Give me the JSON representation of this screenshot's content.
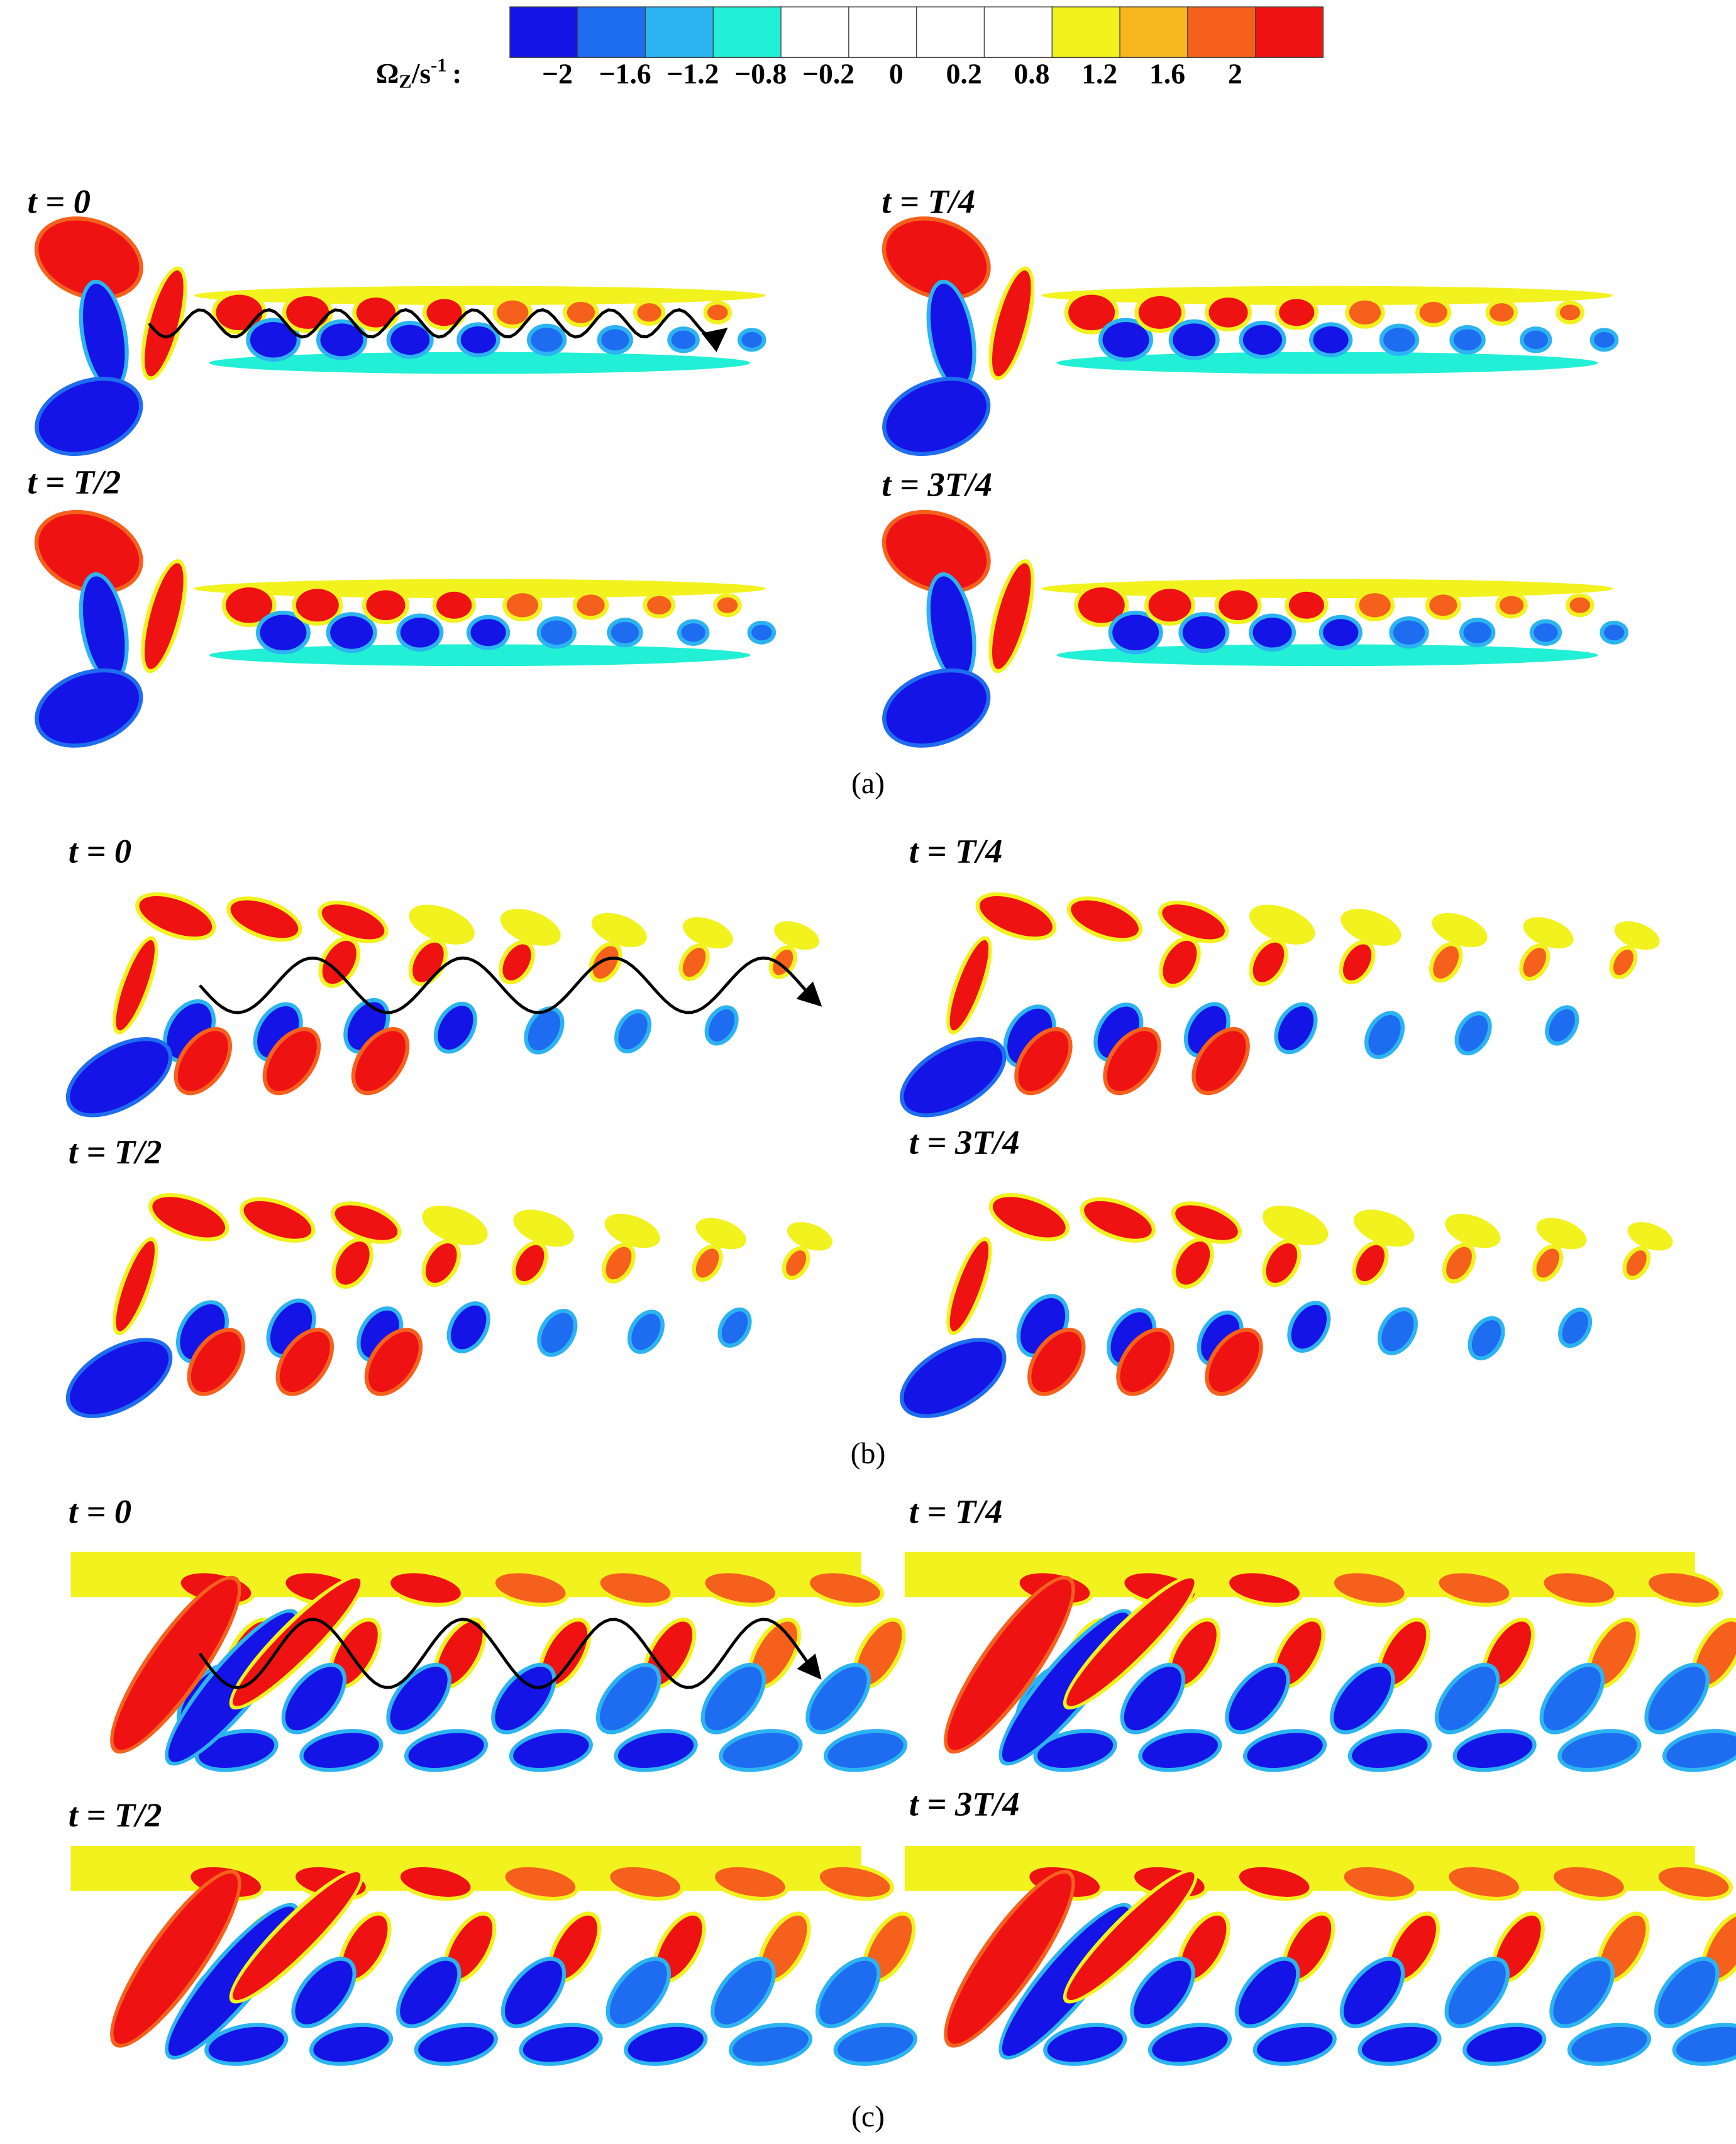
{
  "colorbar": {
    "symbol": "Ω",
    "subscript": "Z",
    "unit": "/s",
    "superscript": "-1",
    "separator": ":",
    "ticks": [
      "−2",
      "−1.6",
      "−1.2",
      "−0.8",
      "−0.2",
      "0",
      "0.2",
      "0.8",
      "1.2",
      "1.6",
      "2"
    ],
    "colors": [
      "#1414e6",
      "#1e6cf0",
      "#2cb4f2",
      "#22f0d6",
      "#ffffff",
      "#ffffff",
      "#ffffff",
      "#ffffff",
      "#f2f21e",
      "#f7b71f",
      "#f5611c",
      "#ef1212"
    ]
  },
  "panels": [
    {
      "label": "(a)",
      "frames": [
        "t = 0",
        "t = T/4",
        "t = T/2",
        "t = 3T/4"
      ]
    },
    {
      "label": "(b)",
      "frames": [
        "t = 0",
        "t = T/4",
        "t = T/2",
        "t = 3T/4"
      ]
    },
    {
      "label": "(c)",
      "frames": [
        "t = 0",
        "t = T/4",
        "t = T/2",
        "t = 3T/4"
      ]
    }
  ]
}
